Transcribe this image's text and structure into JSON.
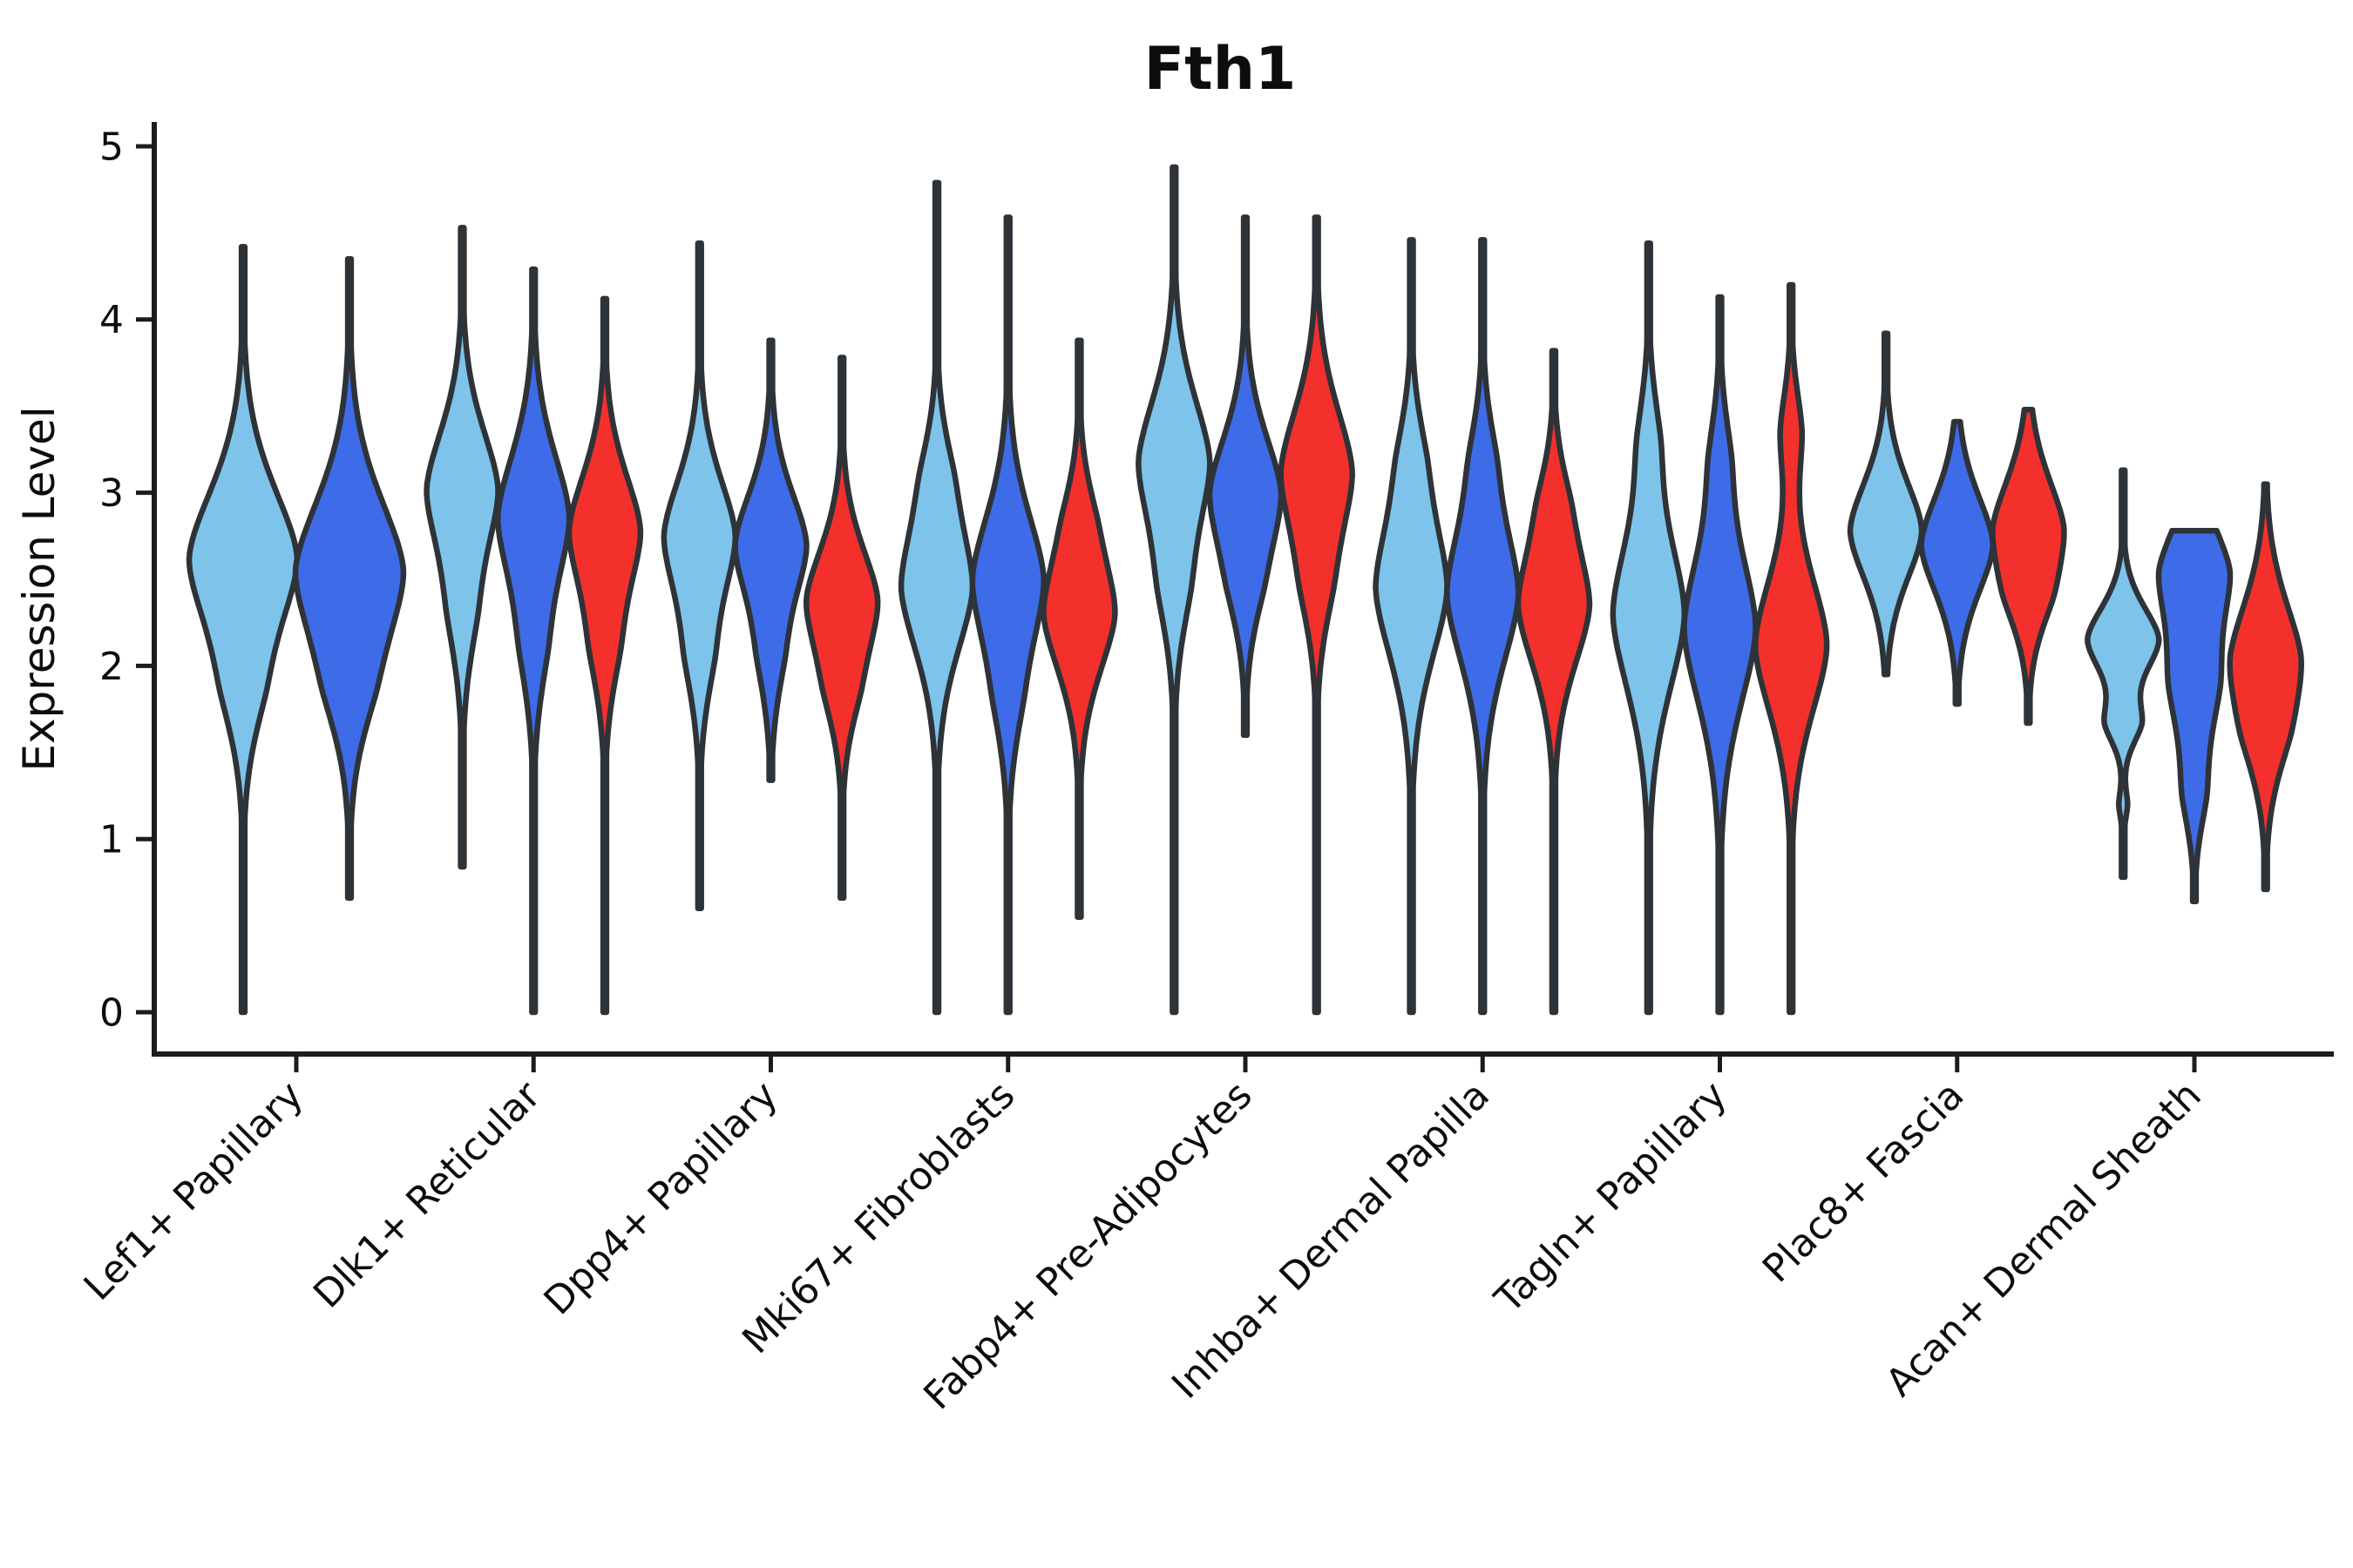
{
  "chart_data": {
    "type": "violin",
    "title": "Fth1",
    "ylabel": "Expression Level",
    "xlabel": "",
    "ylim": [
      0,
      5
    ],
    "yticks": [
      "0",
      "1",
      "2",
      "3",
      "4",
      "5"
    ],
    "grid": false,
    "legend": "none",
    "categories": [
      "Lef1+ Papillary",
      "Dlk1+ Reticular",
      "Dpp4+ Papillary",
      "Mki67+ Fibroblasts",
      "Fabp4+ Pre-Adipocytes",
      "Inhba+ Dermal Papilla",
      "Tagln+ Papillary",
      "Plac8+ Fascia",
      "Acan+ Dermal Sheath"
    ],
    "series_colors": {
      "light_blue": "#7EC4EA",
      "dark_blue": "#3E6BE8",
      "red": "#F3302C"
    },
    "outline_color": "#2E3338",
    "axis_color": "#1c1c1c",
    "groups": [
      {
        "category": "Lef1+ Papillary",
        "violins": [
          {
            "color": "light_blue",
            "min": 0,
            "max": 4.42,
            "mode": 2.62,
            "bumps": [
              {
                "c": 2.62,
                "s": 0.6,
                "a": 1
              },
              {
                "c": 1.85,
                "s": 0.45,
                "a": 0.22
              }
            ]
          },
          {
            "color": "dark_blue",
            "min": 0.66,
            "max": 4.35,
            "mode": 2.55,
            "bumps": [
              {
                "c": 2.55,
                "s": 0.62,
                "a": 1
              },
              {
                "c": 1.85,
                "s": 0.45,
                "a": 0.22
              }
            ]
          }
        ]
      },
      {
        "category": "Dlk1+ Reticular",
        "violins": [
          {
            "color": "light_blue",
            "min": 0.84,
            "max": 4.53,
            "mode": 3.02,
            "bumps": [
              {
                "c": 3.02,
                "s": 0.52,
                "a": 1
              },
              {
                "c": 2.3,
                "s": 0.45,
                "a": 0.28
              }
            ]
          },
          {
            "color": "dark_blue",
            "min": 0,
            "max": 4.29,
            "mode": 2.86,
            "bumps": [
              {
                "c": 2.86,
                "s": 0.55,
                "a": 1
              },
              {
                "c": 2.1,
                "s": 0.45,
                "a": 0.25
              }
            ]
          },
          {
            "color": "red",
            "min": 0,
            "max": 4.12,
            "mode": 2.78,
            "bumps": [
              {
                "c": 2.78,
                "s": 0.5,
                "a": 1
              },
              {
                "c": 2.1,
                "s": 0.42,
                "a": 0.28
              }
            ]
          }
        ]
      },
      {
        "category": "Dpp4+ Papillary",
        "violins": [
          {
            "color": "light_blue",
            "min": 0.6,
            "max": 4.44,
            "mode": 2.75,
            "bumps": [
              {
                "c": 2.75,
                "s": 0.5,
                "a": 1
              },
              {
                "c": 2.05,
                "s": 0.42,
                "a": 0.28
              }
            ]
          },
          {
            "color": "dark_blue",
            "min": 1.34,
            "max": 3.88,
            "mode": 2.7,
            "bumps": [
              {
                "c": 2.7,
                "s": 0.46,
                "a": 1
              },
              {
                "c": 2.05,
                "s": 0.4,
                "a": 0.25
              }
            ]
          },
          {
            "color": "red",
            "min": 0.66,
            "max": 3.78,
            "mode": 2.38,
            "bumps": [
              {
                "c": 2.38,
                "s": 0.46,
                "a": 1
              },
              {
                "c": 1.85,
                "s": 0.38,
                "a": 0.28
              }
            ]
          }
        ]
      },
      {
        "category": "Mki67+ Fibroblasts",
        "violins": [
          {
            "color": "light_blue",
            "min": 0,
            "max": 4.79,
            "mode": 2.45,
            "bumps": [
              {
                "c": 2.45,
                "s": 0.55,
                "a": 1
              },
              {
                "c": 3.1,
                "s": 0.4,
                "a": 0.25
              }
            ]
          },
          {
            "color": "dark_blue",
            "min": 0,
            "max": 4.59,
            "mode": 2.5,
            "bumps": [
              {
                "c": 2.5,
                "s": 0.56,
                "a": 1
              },
              {
                "c": 1.8,
                "s": 0.45,
                "a": 0.22
              }
            ]
          },
          {
            "color": "red",
            "min": 0.55,
            "max": 3.88,
            "mode": 2.3,
            "bumps": [
              {
                "c": 2.3,
                "s": 0.5,
                "a": 1
              },
              {
                "c": 2.85,
                "s": 0.38,
                "a": 0.22
              }
            ]
          }
        ]
      },
      {
        "category": "Fabp4+ Pre-Adipocytes",
        "violins": [
          {
            "color": "light_blue",
            "min": 0,
            "max": 4.88,
            "mode": 3.18,
            "bumps": [
              {
                "c": 3.18,
                "s": 0.55,
                "a": 1
              },
              {
                "c": 2.45,
                "s": 0.45,
                "a": 0.3
              }
            ]
          },
          {
            "color": "dark_blue",
            "min": 1.6,
            "max": 4.59,
            "mode": 3.0,
            "bumps": [
              {
                "c": 3.0,
                "s": 0.5,
                "a": 1
              },
              {
                "c": 2.45,
                "s": 0.4,
                "a": 0.25
              }
            ]
          },
          {
            "color": "red",
            "min": 0,
            "max": 4.59,
            "mode": 3.12,
            "bumps": [
              {
                "c": 3.12,
                "s": 0.55,
                "a": 1
              },
              {
                "c": 2.45,
                "s": 0.42,
                "a": 0.25
              }
            ]
          }
        ]
      },
      {
        "category": "Inhba+ Dermal Papilla",
        "violins": [
          {
            "color": "light_blue",
            "min": 0,
            "max": 4.46,
            "mode": 2.45,
            "bumps": [
              {
                "c": 2.45,
                "s": 0.6,
                "a": 1
              },
              {
                "c": 3.2,
                "s": 0.4,
                "a": 0.22
              }
            ]
          },
          {
            "color": "dark_blue",
            "min": 0,
            "max": 4.46,
            "mode": 2.42,
            "bumps": [
              {
                "c": 2.42,
                "s": 0.6,
                "a": 1
              },
              {
                "c": 3.2,
                "s": 0.38,
                "a": 0.2
              }
            ]
          },
          {
            "color": "red",
            "min": 0,
            "max": 3.82,
            "mode": 2.35,
            "bumps": [
              {
                "c": 2.35,
                "s": 0.52,
                "a": 1
              },
              {
                "c": 2.95,
                "s": 0.35,
                "a": 0.22
              }
            ]
          }
        ]
      },
      {
        "category": "Tagln+ Papillary",
        "violins": [
          {
            "color": "light_blue",
            "min": 0,
            "max": 4.44,
            "mode": 2.3,
            "bumps": [
              {
                "c": 2.3,
                "s": 0.65,
                "a": 1
              },
              {
                "c": 3.3,
                "s": 0.4,
                "a": 0.22
              }
            ]
          },
          {
            "color": "dark_blue",
            "min": 0,
            "max": 4.13,
            "mode": 2.22,
            "bumps": [
              {
                "c": 2.22,
                "s": 0.65,
                "a": 1
              },
              {
                "c": 3.2,
                "s": 0.38,
                "a": 0.2
              }
            ]
          },
          {
            "color": "red",
            "min": 0,
            "max": 4.2,
            "mode": 2.12,
            "bumps": [
              {
                "c": 2.12,
                "s": 0.58,
                "a": 1
              },
              {
                "c": 3.35,
                "s": 0.35,
                "a": 0.28
              }
            ]
          }
        ]
      },
      {
        "category": "Plac8+ Fascia",
        "violins": [
          {
            "color": "light_blue",
            "min": 1.95,
            "max": 3.92,
            "mode": 2.78,
            "bumps": [
              {
                "c": 2.78,
                "s": 0.42,
                "a": 1
              }
            ]
          },
          {
            "color": "dark_blue",
            "min": 1.78,
            "max": 3.41,
            "mode": 2.7,
            "bumps": [
              {
                "c": 2.7,
                "s": 0.42,
                "a": 1
              }
            ]
          },
          {
            "color": "red",
            "min": 1.67,
            "max": 3.48,
            "mode": 2.8,
            "bumps": [
              {
                "c": 2.8,
                "s": 0.44,
                "a": 1
              },
              {
                "c": 2.4,
                "s": 0.33,
                "a": 0.35
              }
            ]
          }
        ]
      },
      {
        "category": "Acan+ Dermal Sheath",
        "violins": [
          {
            "color": "light_blue",
            "min": 0.78,
            "max": 3.13,
            "mode": 2.15,
            "bumps": [
              {
                "c": 2.15,
                "s": 0.28,
                "a": 1
              },
              {
                "c": 1.67,
                "s": 0.18,
                "a": 0.45
              },
              {
                "c": 1.2,
                "s": 0.12,
                "a": 0.12
              }
            ]
          },
          {
            "color": "dark_blue",
            "min": 0.64,
            "max": 2.78,
            "mode": 2.45,
            "bumps": [
              {
                "c": 2.55,
                "s": 0.4,
                "a": 1
              },
              {
                "c": 1.9,
                "s": 0.5,
                "a": 0.75
              },
              {
                "c": 1.25,
                "s": 0.3,
                "a": 0.25
              }
            ]
          },
          {
            "color": "red",
            "min": 0.71,
            "max": 3.05,
            "mode": 2.05,
            "bumps": [
              {
                "c": 2.05,
                "s": 0.5,
                "a": 1
              },
              {
                "c": 1.6,
                "s": 0.4,
                "a": 0.35
              }
            ]
          }
        ]
      }
    ]
  }
}
